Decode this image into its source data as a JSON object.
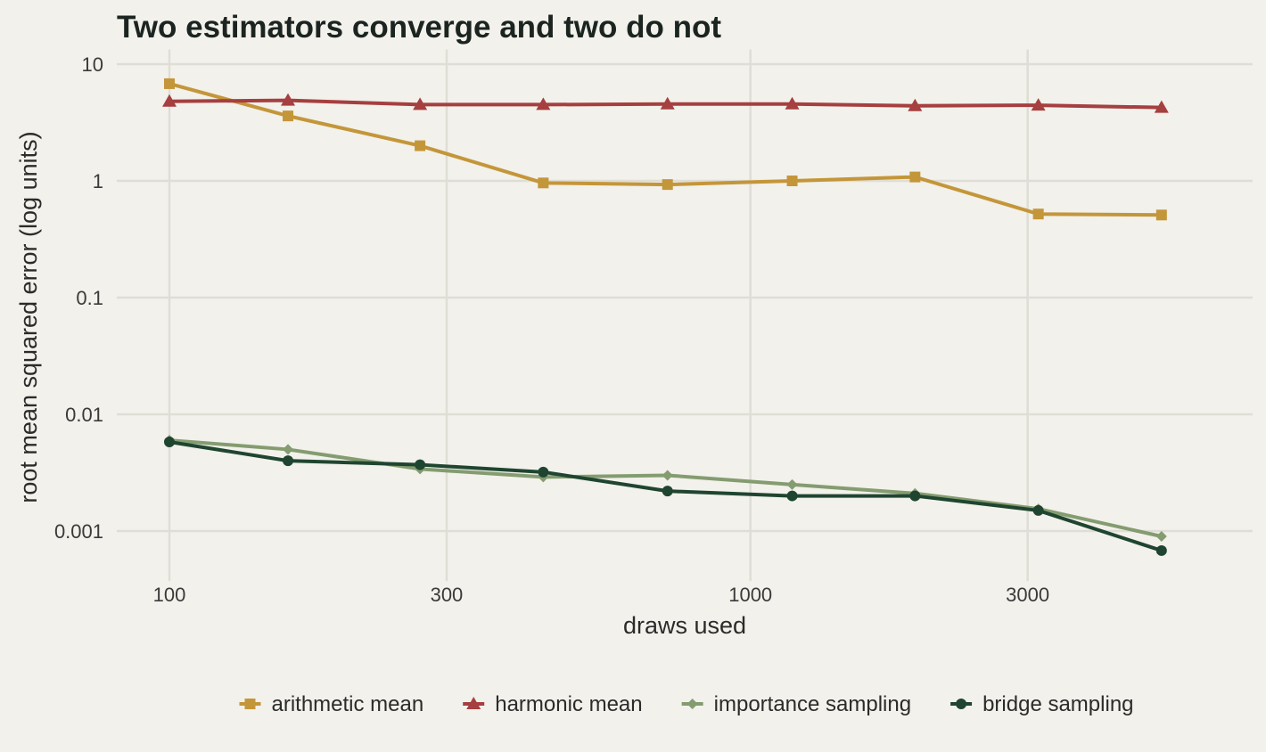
{
  "chart_data": {
    "type": "line",
    "title": "Two estimators converge and two do not",
    "xlabel": "draws used",
    "ylabel": "root mean squared error (log units)",
    "x_scale": "log",
    "y_scale": "log",
    "xlim": [
      90,
      5300
    ],
    "ylim": [
      0.0004,
      12
    ],
    "x_ticks": [
      100,
      300,
      1000,
      3000
    ],
    "x_tick_labels": [
      "100",
      "300",
      "1000",
      "3000"
    ],
    "y_ticks": [
      0.001,
      0.01,
      0.1,
      1,
      10
    ],
    "y_tick_labels": [
      "0.001",
      "0.01",
      "0.1",
      "1",
      "10"
    ],
    "grid": true,
    "legend_position": "bottom",
    "x": [
      100,
      160,
      270,
      440,
      720,
      1180,
      1920,
      3130,
      5100
    ],
    "series": [
      {
        "name": "arithmetic mean",
        "color": "#c4963a",
        "marker": "square",
        "values": [
          6.8,
          3.6,
          2.0,
          0.96,
          0.93,
          1.0,
          1.08,
          0.52,
          0.51
        ]
      },
      {
        "name": "harmonic mean",
        "color": "#a63f3f",
        "marker": "triangle",
        "values": [
          4.8,
          4.9,
          4.5,
          4.5,
          4.55,
          4.55,
          4.4,
          4.45,
          4.25
        ]
      },
      {
        "name": "importance sampling",
        "color": "#849c70",
        "marker": "diamond",
        "values": [
          0.006,
          0.005,
          0.0034,
          0.0029,
          0.003,
          0.0025,
          0.0021,
          0.00155,
          0.0009
        ]
      },
      {
        "name": "bridge sampling",
        "color": "#1f4530",
        "marker": "circle",
        "values": [
          0.0058,
          0.004,
          0.0037,
          0.0032,
          0.0022,
          0.002,
          0.002,
          0.0015,
          0.00068
        ]
      }
    ]
  }
}
